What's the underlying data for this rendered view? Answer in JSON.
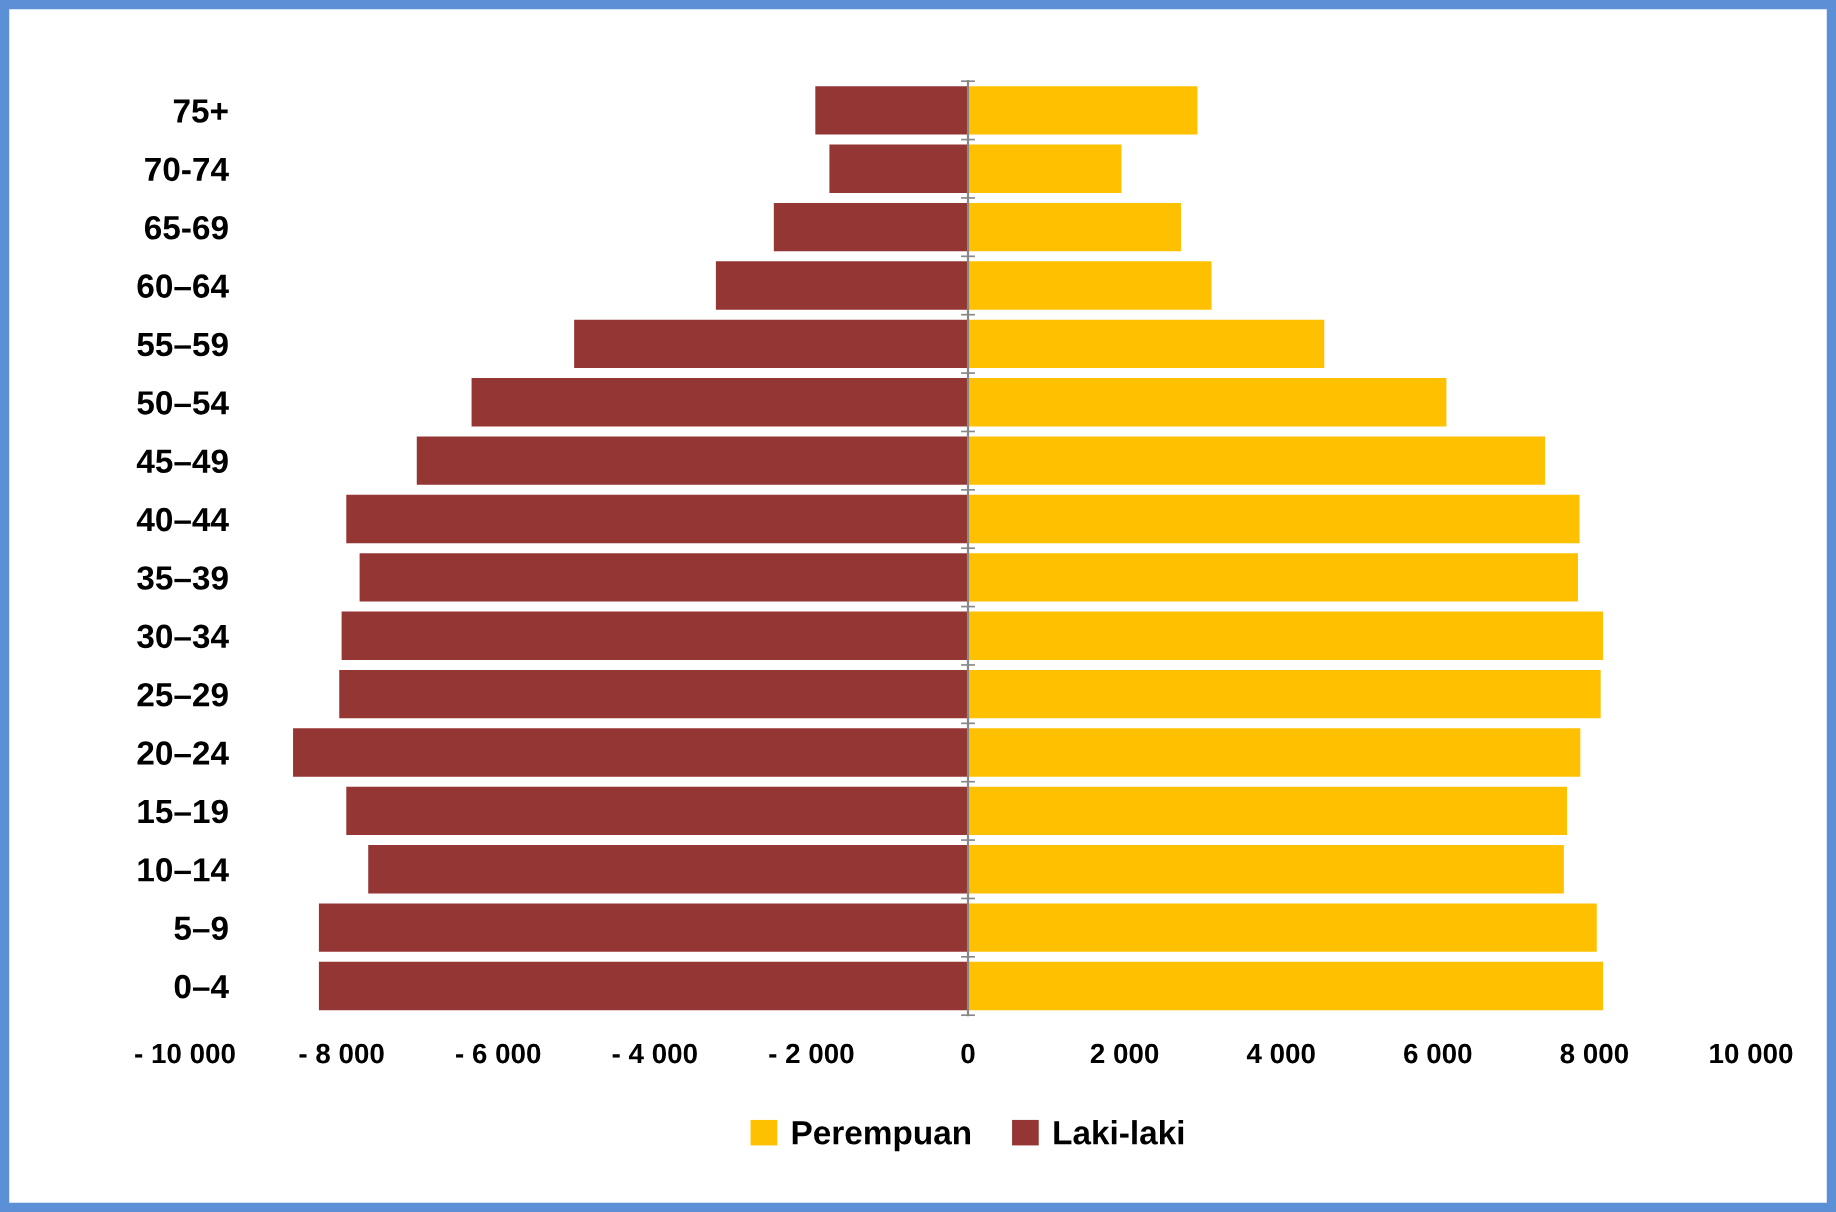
{
  "chart_data": {
    "type": "bar",
    "orientation": "horizontal",
    "categories": [
      "75+",
      "70-74",
      "65-69",
      "60–64",
      "55–59",
      "50–54",
      "45–49",
      "40–44",
      "35–39",
      "30–34",
      "25–29",
      "20–24",
      "15–19",
      "10–14",
      "5–9",
      "0–4"
    ],
    "series": [
      {
        "name": "Perempuan",
        "color": "#ffc000",
        "values": [
          2930,
          1960,
          2720,
          3110,
          4550,
          6110,
          7370,
          7810,
          7790,
          8110,
          8080,
          7820,
          7650,
          7610,
          8030,
          8110
        ]
      },
      {
        "name": "Laki-laki",
        "color": "#943634",
        "values": [
          -1950,
          -1770,
          -2480,
          -3220,
          -5030,
          -6340,
          -7040,
          -7940,
          -7770,
          -8000,
          -8030,
          -8620,
          -7940,
          -7660,
          -8290,
          -8290
        ]
      }
    ],
    "xlim": [
      -10000,
      10000
    ],
    "xticks": [
      {
        "value": -10000,
        "label": "- 10 000"
      },
      {
        "value": -8000,
        "label": "- 8 000"
      },
      {
        "value": -6000,
        "label": "- 6 000"
      },
      {
        "value": -4000,
        "label": "- 4 000"
      },
      {
        "value": -2000,
        "label": "- 2 000"
      },
      0,
      {
        "value": 2000,
        "label": "2 000"
      },
      {
        "value": 4000,
        "label": "4 000"
      },
      {
        "value": 6000,
        "label": "6 000"
      },
      {
        "value": 8000,
        "label": "8 000"
      },
      {
        "value": 10000,
        "label": "10 000"
      }
    ],
    "stacked": true,
    "legend": "bottom"
  }
}
